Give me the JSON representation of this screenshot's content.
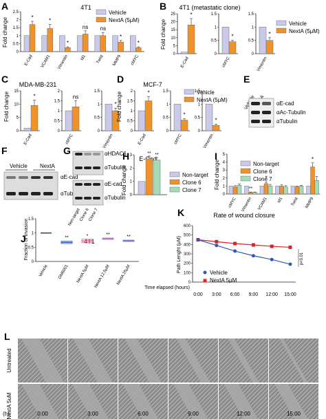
{
  "colors": {
    "vehicle": "#c9c9ea",
    "nexta": "#f0922b",
    "nontarget": "#c9c9ea",
    "clone6": "#f0922b",
    "clone7": "#a6dbb8",
    "red": "#dd2222",
    "blue": "#3355bb"
  },
  "panels": {
    "A": "A",
    "B": "B",
    "C": "C",
    "D": "D",
    "E": "E",
    "F": "F",
    "G": "G",
    "H": "H",
    "I": "I",
    "J": "J",
    "K": "K",
    "L": "L"
  },
  "legend": {
    "vehicle": "Vehicle",
    "nexta": "NextA (5μM)",
    "nontarget": "Non-target",
    "clone6": "Clone 6",
    "clone7": "Clone 7",
    "nexta_k": "NextA 5μM"
  },
  "common": {
    "fold_change": "Fold change",
    "star": "*",
    "dstar": "**",
    "ns": "ns",
    "tubulin": "αTubulin"
  },
  "A": {
    "title": "4T1",
    "cats": [
      "E-Cad",
      "VCAM1",
      "Vimentin",
      "Id1",
      "Twist",
      "MMP9",
      "cMYC"
    ],
    "vehicle": [
      1,
      1,
      1,
      1,
      1,
      1,
      1
    ],
    "nexta": [
      1.7,
      1.45,
      0.25,
      1.1,
      1.0,
      0.6,
      0.25
    ],
    "err": [
      0.2,
      0.25,
      0.05,
      0.2,
      0.2,
      0.1,
      0.05
    ],
    "sig": [
      "*",
      "*",
      "*",
      "ns",
      "ns",
      "*",
      "*"
    ],
    "ymax": 2.5,
    "ticks": [
      0,
      0.5,
      1,
      1.5,
      2,
      2.5
    ]
  },
  "B": {
    "title": "4T1 (metastatic clone)",
    "charts": [
      {
        "cat": "E-Cad",
        "v": 1,
        "n": 18,
        "err": 4,
        "ymax": 25,
        "ticks": [
          0,
          5,
          10,
          15,
          20,
          25
        ]
      },
      {
        "cat": "cMYC",
        "v": 1,
        "n": 0.45,
        "err": 0.05,
        "ymax": 1.5,
        "ticks": [
          0,
          0.5,
          1,
          1.5
        ]
      },
      {
        "cat": "Vimentin",
        "v": 1,
        "n": 0.5,
        "err": 0.1,
        "ymax": 1.5,
        "ticks": [
          0,
          0.5,
          1,
          1.5
        ]
      }
    ]
  },
  "C": {
    "title": "MDA-MB-231",
    "charts": [
      {
        "cat": "E-Cad",
        "v": 1,
        "n": 9.5,
        "err": 2,
        "ymax": 15,
        "ticks": [
          0,
          5,
          10,
          15
        ],
        "sig": "*"
      },
      {
        "cat": "cMYC",
        "v": 1,
        "n": 1.2,
        "err": 0.3,
        "ymax": 2,
        "ticks": [
          0,
          0.5,
          1,
          1.5,
          2
        ],
        "sig": "ns"
      },
      {
        "cat": "Vimentin",
        "v": 1,
        "n": 0.75,
        "err": 0.1,
        "ymax": 1.5,
        "ticks": [
          0,
          0.5,
          1,
          1.5
        ],
        "sig": "*"
      }
    ]
  },
  "D": {
    "title": "MCF-7",
    "charts": [
      {
        "cat": "E-Cad",
        "v": 1,
        "n": 1.5,
        "err": 0.2,
        "ymax": 2,
        "ticks": [
          0,
          0.5,
          1,
          1.5,
          2
        ]
      },
      {
        "cat": "cMYC",
        "v": 1,
        "n": 0.4,
        "err": 0.05,
        "ymax": 1.5,
        "ticks": [
          0,
          0.5,
          1,
          1.5
        ]
      },
      {
        "cat": "Vimentin",
        "v": 1,
        "n": 0.2,
        "err": 0.05,
        "ymax": 1.5,
        "ticks": [
          0,
          0.5,
          1,
          1.5
        ]
      }
    ]
  },
  "E": {
    "lanes": [
      "Vehicle",
      "NextA"
    ],
    "bands": [
      "αE-cad",
      "αAc-Tubulin",
      "αTubulin"
    ]
  },
  "F": {
    "lanes": [
      "Vehicle",
      "NextA"
    ],
    "bands": [
      "αE-cad",
      "αTubulin"
    ]
  },
  "G": {
    "bands": [
      "αHDAC6",
      "αTubulin",
      "αE-cad",
      "αTubulin"
    ],
    "lanes": [
      "Non-target",
      "Clone 6",
      "Clone 7"
    ]
  },
  "H": {
    "title": "E-Cad",
    "values": [
      1,
      2.7,
      2.6
    ],
    "err": [
      0,
      0.2,
      0.2
    ],
    "ymax": 3,
    "ticks": [
      0,
      1,
      2,
      3
    ]
  },
  "I": {
    "cats": [
      "cMYC",
      "Vimentin",
      "VCAM1",
      "Id1",
      "Twist",
      "MMP9"
    ],
    "nt": [
      1,
      1,
      1,
      1,
      1,
      1
    ],
    "c6": [
      0.9,
      0.2,
      1.3,
      1.0,
      0.9,
      3.4
    ],
    "c7": [
      1.1,
      0.2,
      1.0,
      0.9,
      1.0,
      1.7
    ],
    "err": [
      0.15,
      0.05,
      0.2,
      0.15,
      0.1,
      0.5
    ],
    "ymax": 5,
    "ticks": [
      0,
      1,
      2,
      3,
      4,
      5
    ]
  },
  "J": {
    "title": "4T1",
    "ylabel": "Fraction of invasion",
    "cats": [
      "Vehicle",
      "GM6001",
      "NextA 5μM",
      "NextA 12.5μM",
      "NextA 25μM"
    ],
    "values": [
      1.0,
      0.67,
      0.72,
      0.8,
      0.73
    ],
    "range": [
      0,
      0.08,
      0.12,
      0.05,
      0.04
    ],
    "sig": [
      "",
      "**",
      "*",
      "**",
      "**"
    ],
    "ymax": 1.5,
    "ticks": [
      0,
      0.5,
      1,
      1.5
    ]
  },
  "K": {
    "title": "Rate of wound closure",
    "ylabel": "Path Lenght (μM)",
    "xlabel": "Time elapsed (hours)",
    "x": [
      "0:00",
      "3:00",
      "6:00",
      "9:00",
      "12:00",
      "15:00"
    ],
    "vehicle": [
      450,
      390,
      330,
      280,
      240,
      190
    ],
    "nexta": [
      450,
      430,
      410,
      395,
      380,
      370
    ],
    "ymax": 600,
    "ticks": [
      0,
      100,
      200,
      300,
      400,
      500,
      600
    ],
    "p": "p<0.01"
  },
  "L": {
    "rows": [
      "Untreated",
      "NextA 5uM"
    ],
    "times": [
      "0:00",
      "3:00",
      "6:00",
      "9:00",
      "12:00",
      "15:00"
    ],
    "h": "(h)"
  }
}
